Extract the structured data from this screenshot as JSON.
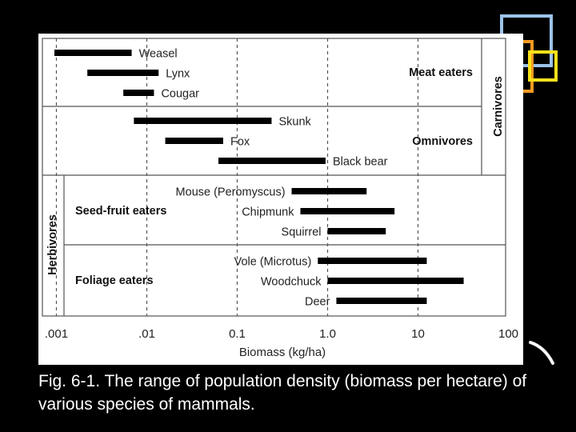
{
  "caption": "Fig. 6-1. The range of population density (biomass per hectare) of various species of mammals.",
  "colors": {
    "background": "#000000",
    "panel": "#ffffff",
    "bar": "#000000",
    "deco_blue": "#9cc3ea",
    "deco_orange": "#f59a20",
    "deco_yellow": "#f7e11a"
  },
  "chart_data": {
    "type": "range-bar",
    "xlabel": "Biomass (kg/ha)",
    "xscale": "log",
    "xlim": [
      0.001,
      100
    ],
    "xticks": [
      {
        "value": 0.001,
        "label": ".001"
      },
      {
        "value": 0.01,
        "label": ".01"
      },
      {
        "value": 0.1,
        "label": "0.1"
      },
      {
        "value": 1.0,
        "label": "1.0"
      },
      {
        "value": 10,
        "label": "10"
      },
      {
        "value": 100,
        "label": "100"
      }
    ],
    "major_groups": [
      {
        "label": "Carnivores",
        "subgroups": [
          "Meat eaters",
          "Omnivores"
        ]
      },
      {
        "label": "Herbivores",
        "subgroups": [
          "Seed-fruit eaters",
          "Foliage eaters"
        ]
      }
    ],
    "subgroups": [
      {
        "label": "Meat eaters",
        "species": [
          {
            "name": "Weasel",
            "min": 0.00095,
            "max": 0.0068
          },
          {
            "name": "Lynx",
            "min": 0.0022,
            "max": 0.0135
          },
          {
            "name": "Cougar",
            "min": 0.0055,
            "max": 0.012
          }
        ]
      },
      {
        "label": "Omnivores",
        "species": [
          {
            "name": "Skunk",
            "min": 0.0072,
            "max": 0.24
          },
          {
            "name": "Fox",
            "min": 0.016,
            "max": 0.07
          },
          {
            "name": "Black bear",
            "min": 0.062,
            "max": 0.95
          }
        ]
      },
      {
        "label": "Seed-fruit eaters",
        "species": [
          {
            "name": "Mouse  (Peromyscus)",
            "min": 0.4,
            "max": 2.7
          },
          {
            "name": "Chipmunk",
            "min": 0.5,
            "max": 5.5
          },
          {
            "name": "Squirrel",
            "min": 1.0,
            "max": 4.4
          }
        ]
      },
      {
        "label": "Foliage eaters",
        "species": [
          {
            "name": "Vole (Microtus)",
            "min": 0.78,
            "max": 12.5
          },
          {
            "name": "Woodchuck",
            "min": 1.0,
            "max": 32
          },
          {
            "name": "Deer",
            "min": 1.25,
            "max": 12.5
          }
        ]
      }
    ],
    "reference_lines": [
      0.001,
      0.01,
      0.1,
      1.0,
      10
    ],
    "grid": false,
    "legend": "none"
  }
}
